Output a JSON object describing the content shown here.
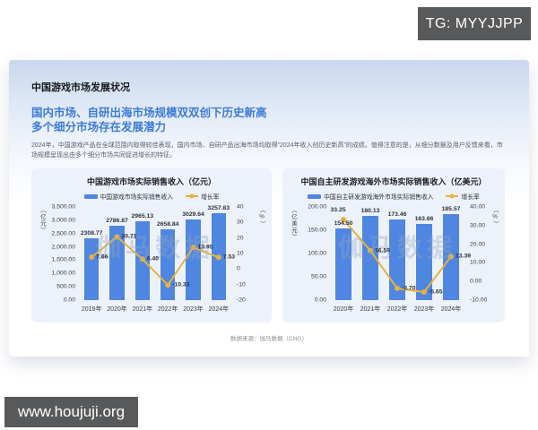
{
  "badges": {
    "tg": "TG: MYYJJPP",
    "url": "www.houjuji.org"
  },
  "report": {
    "title": "中国游戏市场发展状况",
    "headline_line1": "国内市场、自研出海市场规模双双创下历史新高",
    "headline_line2": "多个细分市场存在发展潜力",
    "paragraph": "2024年，中国游戏产品在全球范围内取得较佳表现，国内市场、自研产品出海市场均取得“2024年收入创历史新高”的成绩。值得注意的是，从细分数据及用户反馈来看，市场规模呈现出由多个细分市场共同促进增长的特征。",
    "source": "数据来源：伽马数据（CNG）"
  },
  "colors": {
    "bar": "#4e86e2",
    "line": "#e6b33d",
    "panel_bg": "#edf2fa",
    "headline": "#3d7bd6",
    "badge_bg": "#58595b"
  },
  "chart_data": [
    {
      "type": "bar",
      "title": "中国游戏市场实际销售收入（亿元）",
      "categories": [
        "2019年",
        "2020年",
        "2021年",
        "2022年",
        "2023年",
        "2024年"
      ],
      "series": [
        {
          "name": "中国游戏市场实际销售收入",
          "type": "bar",
          "axis": "left",
          "values": [
            2308.77,
            2786.87,
            2965.13,
            2658.84,
            3029.64,
            3257.83
          ]
        },
        {
          "name": "增长率",
          "type": "line",
          "axis": "right",
          "values": [
            7.66,
            20.71,
            6.4,
            -10.33,
            13.95,
            7.53
          ]
        }
      ],
      "bar_labels": [
        "2308.77",
        "2786.87",
        "2965.13",
        "2658.84",
        "3029.64",
        "3257.83"
      ],
      "line_labels": [
        "7.66",
        "20.71",
        "6.40",
        "-10.33",
        "13.95",
        "7.53"
      ],
      "left_axis": {
        "label": "（亿元）",
        "min": 0,
        "max": 3500,
        "ticks": [
          "3,500.00",
          "3,000.00",
          "2,500.00",
          "2,000.00",
          "1,500.00",
          "1,000.00",
          "500.00",
          "0.00"
        ]
      },
      "right_axis": {
        "label": "（%）",
        "min": -20,
        "max": 40,
        "ticks": [
          "40",
          "30",
          "20",
          "10",
          "0",
          "-10",
          "-20"
        ]
      },
      "legend_position": "top",
      "grid": false,
      "watermark": "伽马数据",
      "first_line_label_above": false
    },
    {
      "type": "bar",
      "title": "中国自主研发游戏海外市场实际销售收入（亿美元）",
      "categories": [
        "2020年",
        "2021年",
        "2022年",
        "2023年",
        "2024年"
      ],
      "series": [
        {
          "name": "中国自主研发游戏海外市场实际销售收入",
          "type": "bar",
          "axis": "left",
          "values": [
            154.5,
            180.13,
            173.46,
            163.66,
            185.57
          ]
        },
        {
          "name": "增长率",
          "type": "line",
          "axis": "right",
          "values": [
            33.25,
            16.59,
            -3.7,
            -5.65,
            13.39
          ]
        }
      ],
      "bar_labels": [
        "154.50",
        "180.13",
        "173.46",
        "163.66",
        "185.57"
      ],
      "line_labels": [
        "33.25",
        "16.59",
        "-3.70",
        "-5.65",
        "13.39"
      ],
      "left_axis": {
        "label": "（亿美元）",
        "min": 0,
        "max": 200,
        "ticks": [
          "200.00",
          "150.00",
          "100.00",
          "50.00",
          "0.00"
        ]
      },
      "right_axis": {
        "label": "（%）",
        "min": -10,
        "max": 40,
        "ticks": [
          "40.00",
          "30.00",
          "20.00",
          "10.00",
          "0.00",
          "-10.00"
        ]
      },
      "legend_position": "top",
      "grid": false,
      "watermark": "伽马数据",
      "first_line_label_above": true
    }
  ]
}
